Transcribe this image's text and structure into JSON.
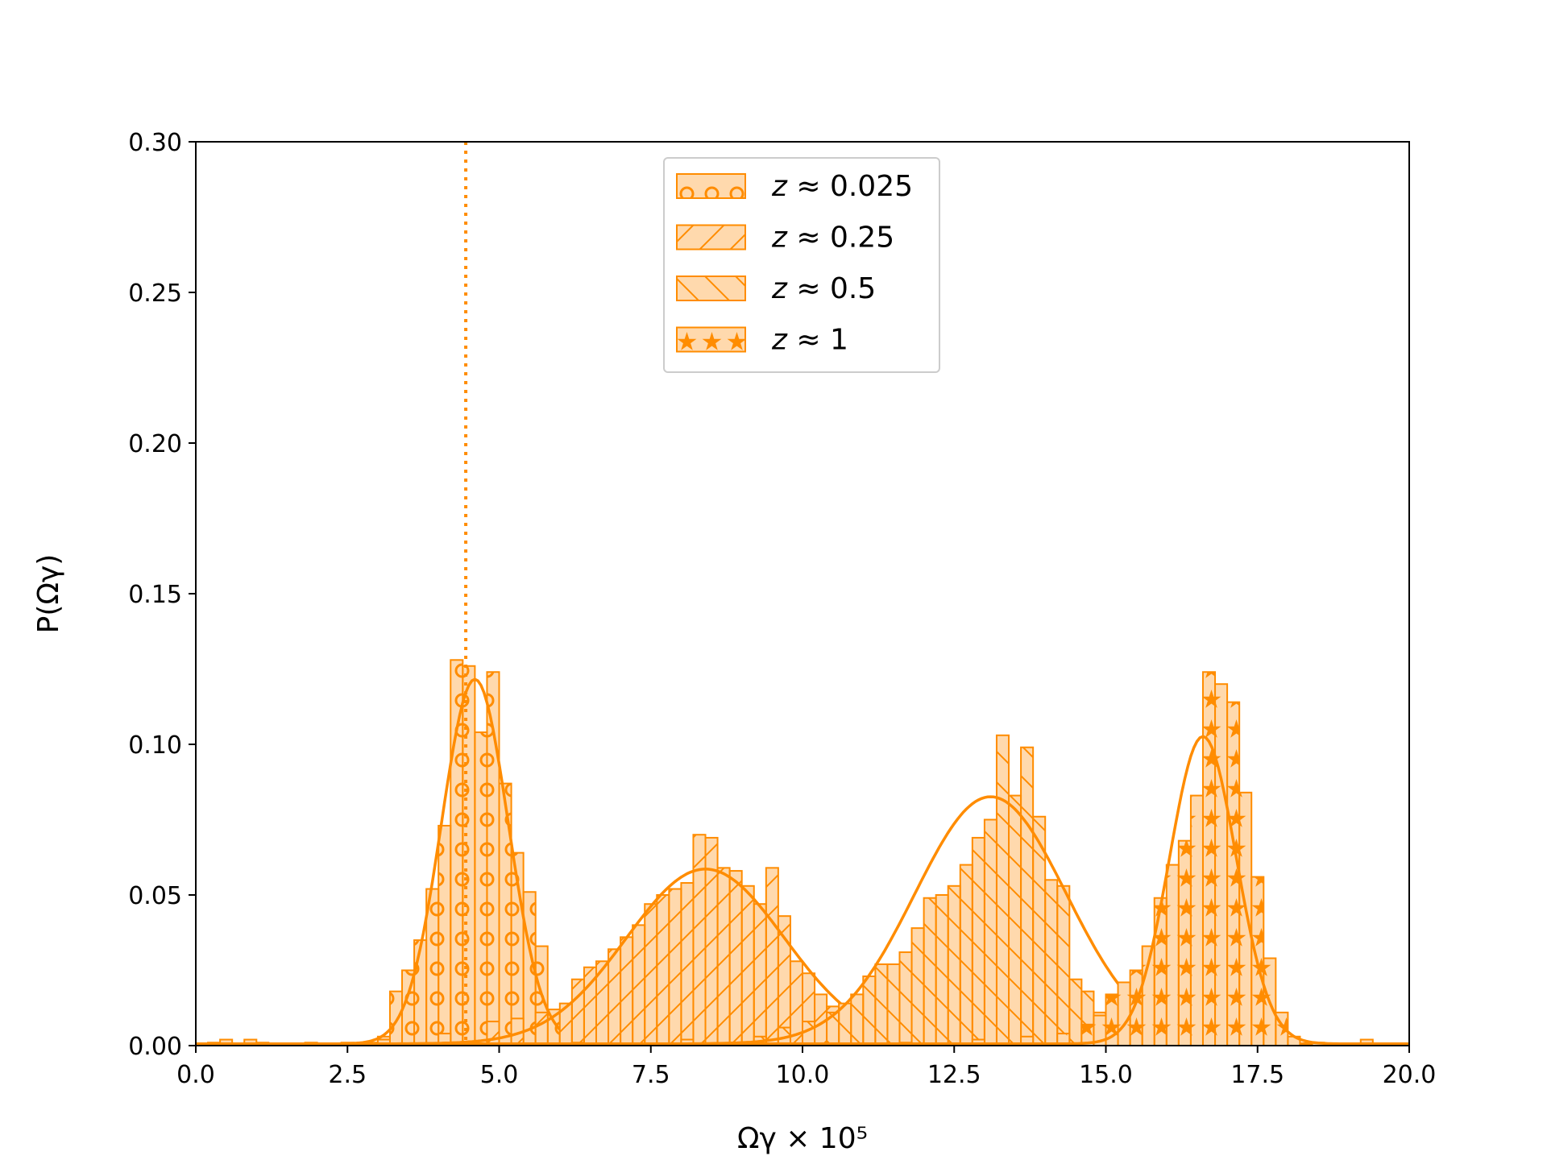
{
  "chart_data": {
    "type": "histogram",
    "xlabel": "Ωγ × 10⁵",
    "ylabel": "P(Ωγ)",
    "xlim": [
      0,
      20
    ],
    "ylim": [
      0,
      0.3
    ],
    "x_ticks": [
      0.0,
      2.5,
      5.0,
      7.5,
      10.0,
      12.5,
      15.0,
      17.5,
      20.0
    ],
    "x_tick_labels": [
      "0.0",
      "2.5",
      "5.0",
      "7.5",
      "10.0",
      "12.5",
      "15.0",
      "17.5",
      "20.0"
    ],
    "y_ticks": [
      0.0,
      0.05,
      0.1,
      0.15,
      0.2,
      0.25,
      0.3
    ],
    "y_tick_labels": [
      "0.00",
      "0.05",
      "0.10",
      "0.15",
      "0.20",
      "0.25",
      "0.30"
    ],
    "grid": false,
    "legend_placement": "upper-center",
    "reference_line": {
      "x": 4.45,
      "style": "dotted",
      "color": "#ff8c00"
    },
    "colors": {
      "edge": "#ff8c00",
      "fill": "#ffd9ad"
    },
    "bin_width": 0.2,
    "series": [
      {
        "legend_var": "z",
        "legend_value": "≈ 0.025",
        "hatch": "circles",
        "fit": {
          "mu": 4.6,
          "sigma": 0.55,
          "peak": 0.121
        },
        "hist": [
          [
            0.2,
            0.001
          ],
          [
            0.8,
            0.002
          ],
          [
            1.8,
            0.001
          ],
          [
            2.4,
            0.001
          ],
          [
            2.8,
            0.001
          ],
          [
            3.0,
            0.003
          ],
          [
            3.2,
            0.018
          ],
          [
            3.4,
            0.025
          ],
          [
            3.6,
            0.035
          ],
          [
            3.8,
            0.052
          ],
          [
            4.0,
            0.073
          ],
          [
            4.2,
            0.128
          ],
          [
            4.4,
            0.126
          ],
          [
            4.6,
            0.104
          ],
          [
            4.8,
            0.124
          ],
          [
            5.0,
            0.087
          ],
          [
            5.2,
            0.064
          ],
          [
            5.4,
            0.051
          ],
          [
            5.6,
            0.033
          ],
          [
            5.8,
            0.012
          ],
          [
            6.0,
            0.004
          ],
          [
            6.2,
            0.001
          ]
        ]
      },
      {
        "legend_var": "z",
        "legend_value": "≈ 0.25",
        "hatch": "forward-diagonal",
        "fit": {
          "mu": 8.4,
          "sigma": 1.3,
          "peak": 0.058
        },
        "hist": [
          [
            0.4,
            0.002
          ],
          [
            1.0,
            0.001
          ],
          [
            3.0,
            0.002
          ],
          [
            4.0,
            0.004
          ],
          [
            4.8,
            0.008
          ],
          [
            5.2,
            0.009
          ],
          [
            5.6,
            0.011
          ],
          [
            6.0,
            0.014
          ],
          [
            6.2,
            0.022
          ],
          [
            6.4,
            0.026
          ],
          [
            6.6,
            0.028
          ],
          [
            6.8,
            0.032
          ],
          [
            7.0,
            0.036
          ],
          [
            7.2,
            0.04
          ],
          [
            7.4,
            0.047
          ],
          [
            7.6,
            0.05
          ],
          [
            7.8,
            0.052
          ],
          [
            8.0,
            0.054
          ],
          [
            8.2,
            0.07
          ],
          [
            8.4,
            0.069
          ],
          [
            8.6,
            0.059
          ],
          [
            8.8,
            0.058
          ],
          [
            9.0,
            0.053
          ],
          [
            9.2,
            0.047
          ],
          [
            9.4,
            0.059
          ],
          [
            9.6,
            0.043
          ],
          [
            9.8,
            0.028
          ],
          [
            10.0,
            0.024
          ],
          [
            10.2,
            0.017
          ],
          [
            10.4,
            0.013
          ],
          [
            10.6,
            0.008
          ],
          [
            10.8,
            0.004
          ],
          [
            11.0,
            0.002
          ]
        ]
      },
      {
        "legend_var": "z",
        "legend_value": "≈ 0.5",
        "hatch": "back-diagonal",
        "fit": {
          "mu": 13.1,
          "sigma": 1.25,
          "peak": 0.082
        },
        "hist": [
          [
            6.2,
            0.001
          ],
          [
            8.0,
            0.002
          ],
          [
            9.2,
            0.003
          ],
          [
            9.6,
            0.006
          ],
          [
            10.0,
            0.008
          ],
          [
            10.4,
            0.011
          ],
          [
            10.6,
            0.014
          ],
          [
            10.8,
            0.017
          ],
          [
            11.0,
            0.023
          ],
          [
            11.2,
            0.027
          ],
          [
            11.4,
            0.027
          ],
          [
            11.6,
            0.031
          ],
          [
            11.8,
            0.039
          ],
          [
            12.0,
            0.049
          ],
          [
            12.2,
            0.05
          ],
          [
            12.4,
            0.053
          ],
          [
            12.6,
            0.06
          ],
          [
            12.8,
            0.069
          ],
          [
            13.0,
            0.075
          ],
          [
            13.2,
            0.103
          ],
          [
            13.4,
            0.083
          ],
          [
            13.6,
            0.099
          ],
          [
            13.8,
            0.076
          ],
          [
            14.0,
            0.055
          ],
          [
            14.2,
            0.053
          ],
          [
            14.4,
            0.022
          ],
          [
            14.6,
            0.018
          ],
          [
            14.8,
            0.011
          ],
          [
            15.0,
            0.005
          ],
          [
            15.2,
            0.002
          ]
        ]
      },
      {
        "legend_var": "z",
        "legend_value": "≈ 1",
        "hatch": "stars",
        "fit": {
          "mu": 16.6,
          "sigma": 0.55,
          "peak": 0.102
        },
        "hist": [
          [
            11.6,
            0.001
          ],
          [
            12.8,
            0.002
          ],
          [
            13.6,
            0.003
          ],
          [
            14.2,
            0.004
          ],
          [
            14.6,
            0.007
          ],
          [
            14.8,
            0.01
          ],
          [
            15.0,
            0.017
          ],
          [
            15.2,
            0.021
          ],
          [
            15.4,
            0.025
          ],
          [
            15.6,
            0.033
          ],
          [
            15.8,
            0.049
          ],
          [
            16.0,
            0.06
          ],
          [
            16.2,
            0.068
          ],
          [
            16.4,
            0.083
          ],
          [
            16.6,
            0.124
          ],
          [
            16.8,
            0.12
          ],
          [
            17.0,
            0.114
          ],
          [
            17.2,
            0.084
          ],
          [
            17.4,
            0.056
          ],
          [
            17.6,
            0.029
          ],
          [
            17.8,
            0.011
          ],
          [
            18.0,
            0.003
          ],
          [
            18.4,
            0.001
          ],
          [
            19.2,
            0.002
          ]
        ]
      }
    ]
  }
}
